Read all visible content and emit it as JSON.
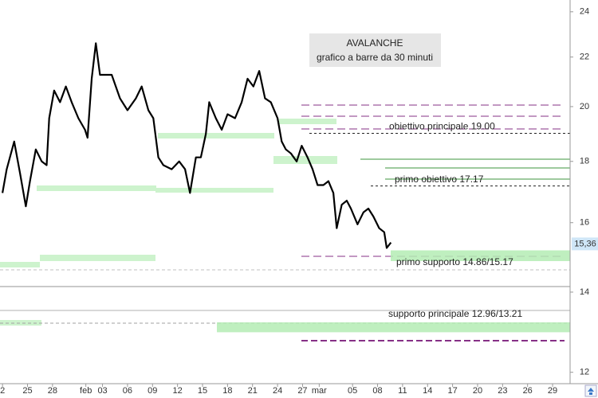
{
  "chart_data": {
    "type": "line",
    "title": "AVALANCHE",
    "subtitle": "grafico a barre da 30 minuti",
    "log_scale": true,
    "xlim": [
      -0.3,
      68.1
    ],
    "xticks": [
      {
        "value": 0,
        "label": "2"
      },
      {
        "value": 3,
        "label": "25"
      },
      {
        "value": 6,
        "label": "28"
      },
      {
        "value": 10,
        "label": "feb"
      },
      {
        "value": 12,
        "label": "03"
      },
      {
        "value": 15,
        "label": "06"
      },
      {
        "value": 18,
        "label": "09"
      },
      {
        "value": 21,
        "label": "12"
      },
      {
        "value": 24,
        "label": "15"
      },
      {
        "value": 27,
        "label": "18"
      },
      {
        "value": 30,
        "label": "21"
      },
      {
        "value": 33,
        "label": "24"
      },
      {
        "value": 36,
        "label": "27"
      },
      {
        "value": 38,
        "label": "mar"
      },
      {
        "value": 42,
        "label": "05"
      },
      {
        "value": 45,
        "label": "08"
      },
      {
        "value": 48,
        "label": "11"
      },
      {
        "value": 51,
        "label": "14"
      },
      {
        "value": 54,
        "label": "17"
      },
      {
        "value": 57,
        "label": "20"
      },
      {
        "value": 60,
        "label": "23"
      },
      {
        "value": 63,
        "label": "26"
      },
      {
        "value": 66,
        "label": "29"
      }
    ],
    "ylim": [
      11.74,
      24.55
    ],
    "yticks": [
      12,
      14,
      16,
      18,
      20,
      22,
      24
    ],
    "series": [
      {
        "color": "#000000",
        "x": [
          0,
          0.5,
          1.4,
          2.1,
          2.8,
          3.3,
          4.0,
          4.7,
          5.3,
          5.6,
          6.2,
          6.9,
          7.6,
          8.3,
          9.1,
          9.9,
          10.2,
          10.7,
          11.2,
          11.7,
          13.1,
          14.1,
          15.0,
          16.0,
          16.7,
          17.5,
          18.1,
          18.7,
          19.3,
          20.3,
          21.2,
          21.9,
          22.5,
          23.2,
          23.8,
          24.4,
          24.8,
          25.6,
          26.3,
          27.0,
          27.9,
          28.7,
          29.4,
          30.1,
          30.8,
          31.5,
          32.2,
          33.0,
          33.5,
          34.0,
          34.6,
          35.3,
          35.9,
          36.6,
          37.2,
          37.8,
          38.5,
          39.1,
          39.7,
          40.1,
          40.7,
          41.3,
          41.8,
          42.6,
          43.3,
          43.9,
          44.5,
          45.2,
          45.8,
          46.1,
          46.6
        ],
        "values": [
          16.94,
          17.73,
          18.7,
          17.6,
          16.51,
          17.33,
          18.42,
          18.0,
          17.87,
          19.56,
          20.63,
          20.17,
          20.79,
          20.17,
          19.56,
          19.13,
          18.84,
          21.1,
          22.59,
          21.26,
          21.26,
          20.32,
          19.86,
          20.32,
          20.79,
          19.86,
          19.56,
          18.14,
          17.87,
          17.73,
          18.0,
          17.73,
          16.94,
          18.14,
          18.14,
          18.98,
          20.17,
          19.56,
          19.13,
          19.71,
          19.56,
          20.17,
          21.1,
          20.79,
          21.42,
          20.32,
          20.17,
          19.56,
          18.7,
          18.42,
          18.28,
          18.0,
          18.55,
          18.14,
          17.73,
          17.2,
          17.2,
          17.33,
          16.94,
          15.83,
          16.56,
          16.69,
          16.44,
          15.95,
          16.32,
          16.44,
          16.19,
          15.83,
          15.71,
          15.24,
          15.4
        ]
      }
    ],
    "last_price": {
      "value": 15.36,
      "label": "15,36"
    },
    "annotations": [
      {
        "label": "obiettivo principale 19.00",
        "values": [
          19.0
        ]
      },
      {
        "label": "primo obiettivo 17.17",
        "values": [
          17.17
        ]
      },
      {
        "label": "primo supporto 14.86/15.17",
        "values": [
          14.86,
          15.17
        ]
      },
      {
        "label": "supporto principale 12.96/13.21",
        "values": [
          12.96,
          13.21
        ]
      }
    ]
  }
}
